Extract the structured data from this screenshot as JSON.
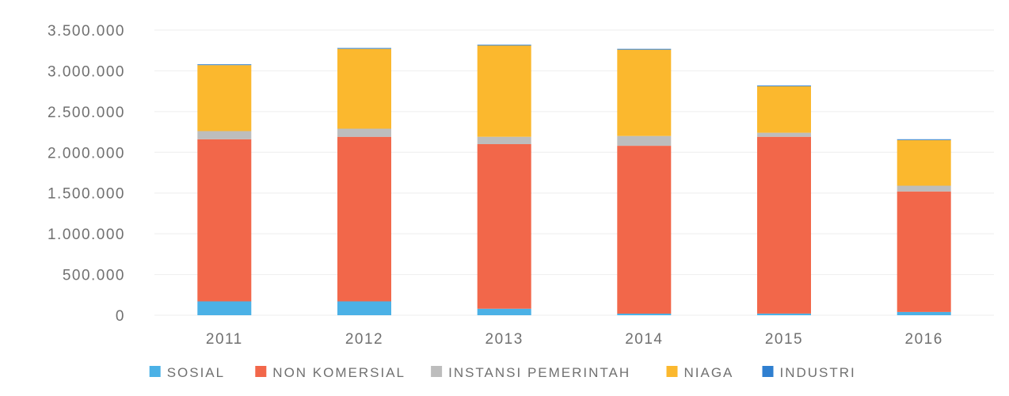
{
  "chart_data": {
    "type": "bar",
    "stacked": true,
    "categories": [
      "2011",
      "2012",
      "2013",
      "2014",
      "2015",
      "2016"
    ],
    "series": [
      {
        "name": "SOSIAL",
        "color": "#4BB1E6",
        "values": [
          170000,
          170000,
          80000,
          20000,
          20000,
          40000
        ]
      },
      {
        "name": "NON KOMERSIAL",
        "color": "#F2674A",
        "values": [
          1990000,
          2020000,
          2020000,
          2060000,
          2170000,
          1480000
        ]
      },
      {
        "name": "INSTANSI PEMERINTAH",
        "color": "#BDBDBD",
        "values": [
          100000,
          100000,
          90000,
          120000,
          50000,
          70000
        ]
      },
      {
        "name": "NIAGA",
        "color": "#FBB82E",
        "values": [
          810000,
          980000,
          1120000,
          1060000,
          570000,
          560000
        ]
      },
      {
        "name": "INDUSTRI",
        "color": "#2F7FD0",
        "values": [
          10000,
          10000,
          10000,
          10000,
          10000,
          10000
        ]
      }
    ],
    "yticks": [
      "0",
      "500.000",
      "1.000.000",
      "1.500.000",
      "2.000.000",
      "2.500.000",
      "3.000.000",
      "3.500.000"
    ],
    "ylim": [
      0,
      3500000
    ],
    "title": "",
    "xlabel": "",
    "ylabel": "",
    "grid": true,
    "legend_position": "bottom"
  }
}
